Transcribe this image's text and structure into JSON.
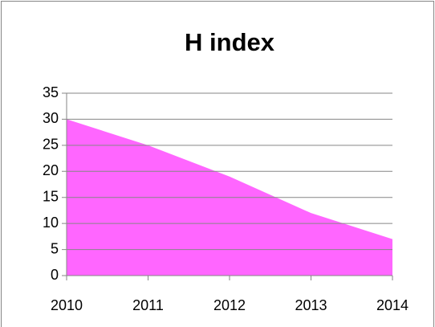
{
  "chart_data": {
    "type": "area",
    "title": "H index",
    "categories": [
      "2010",
      "2011",
      "2012",
      "2013",
      "2014"
    ],
    "values": [
      30,
      25,
      19,
      12,
      7
    ],
    "color": "#ff66ff",
    "ylim": [
      0,
      35
    ],
    "yticks": [
      0,
      5,
      10,
      15,
      20,
      25,
      30,
      35
    ],
    "grid": true
  }
}
